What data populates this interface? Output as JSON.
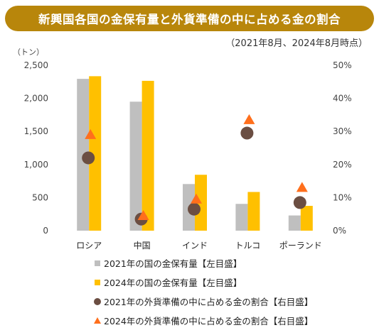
{
  "title": "新興国各国の金保有量と外貨準備の中に占める金の割合",
  "subtitle": "（2021年8月、2024年8月時点）",
  "chart_data": {
    "type": "bar",
    "categories": [
      "ロシア",
      "中国",
      "インド",
      "トルコ",
      "ポーランド"
    ],
    "left_axis": {
      "unit": "（トン）",
      "min": 0,
      "max": 2500,
      "ticks": [
        "0",
        "500",
        "1,000",
        "1,500",
        "2,000",
        "2,500"
      ],
      "tick_values": [
        0,
        500,
        1000,
        1500,
        2000,
        2500
      ]
    },
    "right_axis": {
      "min": 0,
      "max": 50,
      "ticks": [
        "0%",
        "10%",
        "20%",
        "30%",
        "40%",
        "50%"
      ],
      "tick_values": [
        0,
        10,
        20,
        30,
        40,
        50
      ]
    },
    "series": [
      {
        "name": "2021年の国の金保有量【左目盛】",
        "type": "bar",
        "axis": "left",
        "color": "#bfbfbf",
        "values": [
          2295,
          1950,
          705,
          405,
          230
        ]
      },
      {
        "name": "2024年の国の金保有量【左目盛】",
        "type": "bar",
        "axis": "left",
        "color": "#ffc000",
        "values": [
          2335,
          2265,
          845,
          585,
          375
        ]
      },
      {
        "name": "2021年の外貨準備の中に占める金の割合【右目盛】",
        "type": "marker-circle",
        "axis": "right",
        "color": "#6b4e42",
        "values": [
          22,
          3.5,
          6.5,
          29.5,
          8.5
        ]
      },
      {
        "name": "2024年の外貨準備の中に占める金の割合【右目盛】",
        "type": "marker-triangle",
        "axis": "right",
        "color": "#ff6f1c",
        "values": [
          29,
          4.5,
          9.5,
          33.5,
          13
        ]
      }
    ],
    "grid": false,
    "legend_position": "bottom"
  }
}
